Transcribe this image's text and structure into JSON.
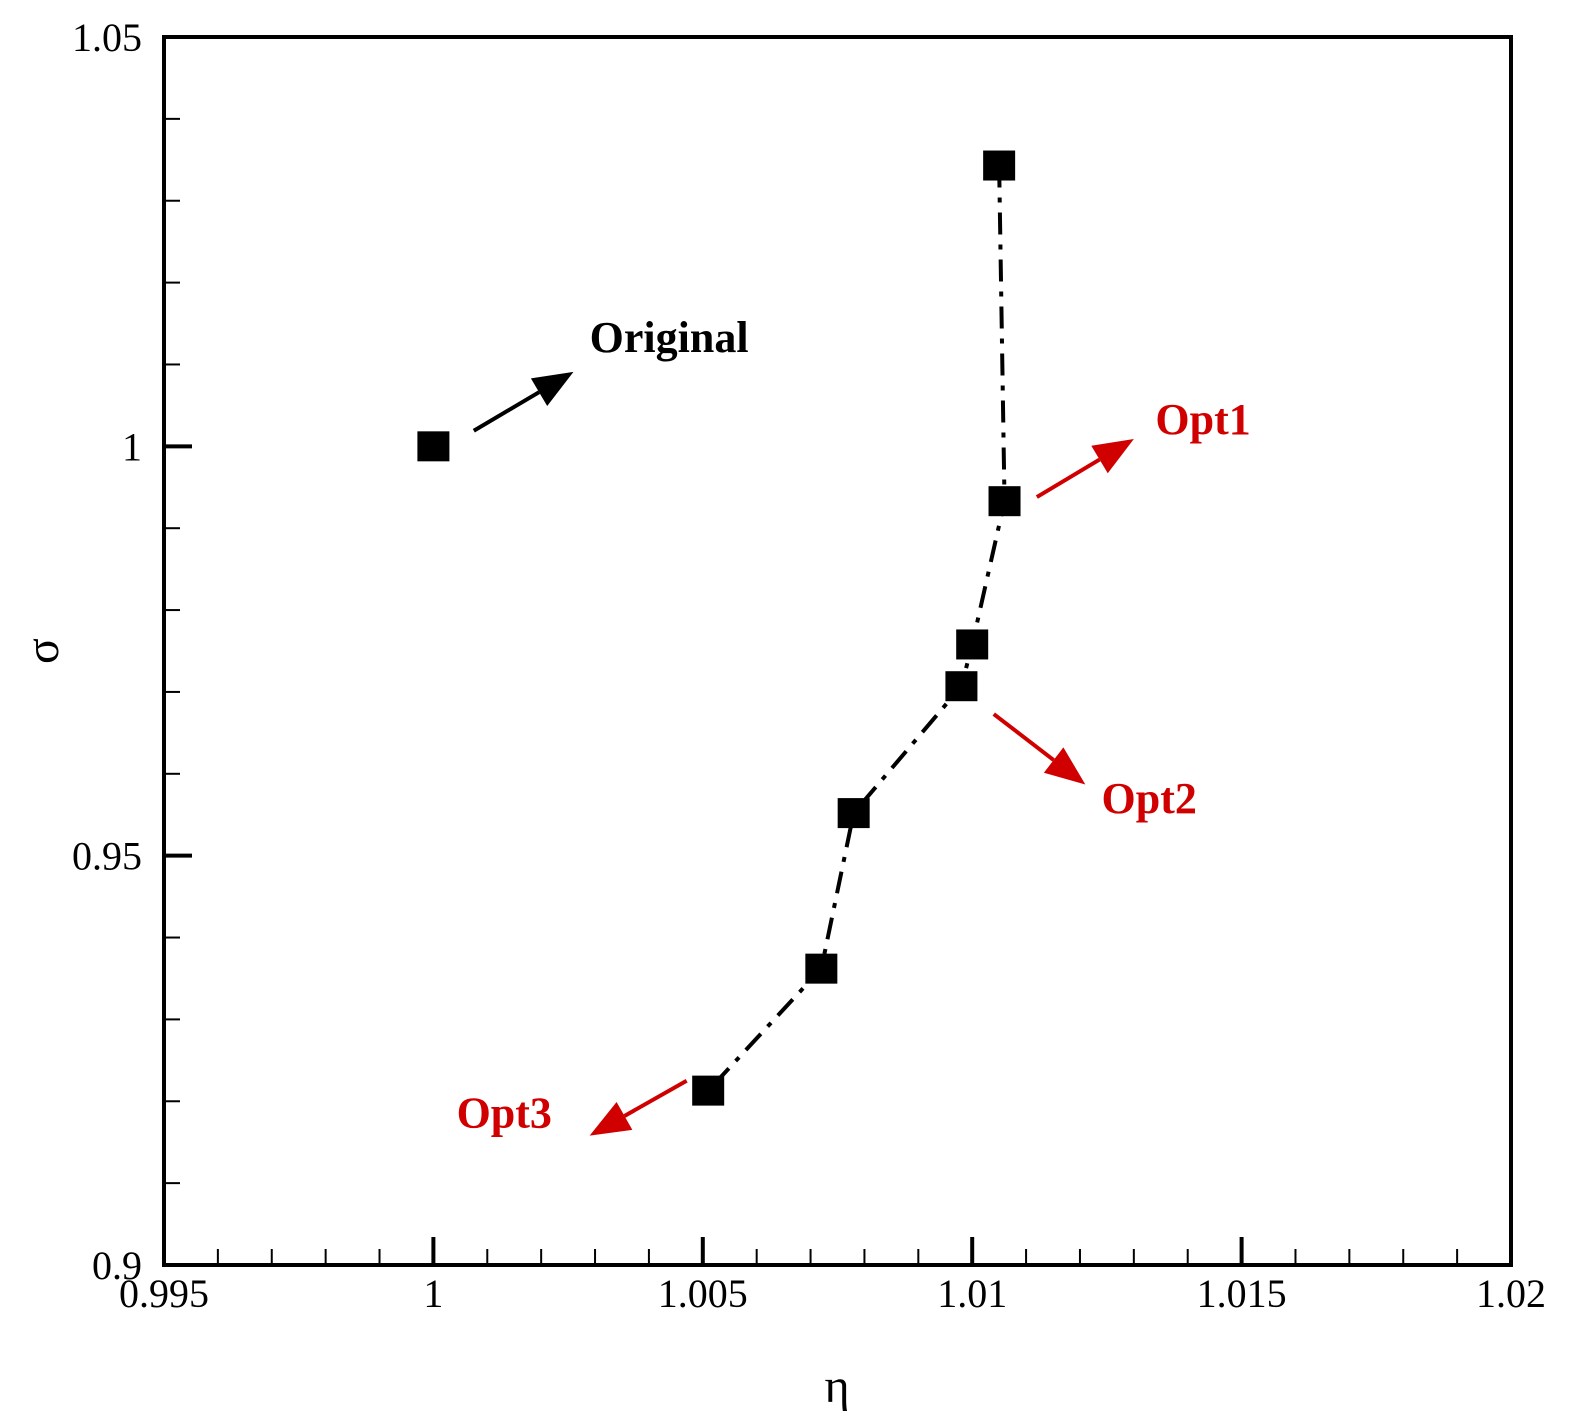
{
  "chart_data": {
    "type": "scatter",
    "xlabel": "η",
    "ylabel": "σ",
    "xlim": [
      0.995,
      1.02
    ],
    "ylim": [
      0.9,
      1.05
    ],
    "x_ticks": [
      0.995,
      1,
      1.005,
      1.01,
      1.015,
      1.02
    ],
    "x_tick_labels": [
      "0.995",
      "1",
      "1.005",
      "1.01",
      "1.015",
      "1.02"
    ],
    "y_ticks": [
      0.9,
      0.95,
      1,
      1.05
    ],
    "y_tick_labels": [
      "0.9",
      "0.95",
      "1",
      "1.05"
    ],
    "x_minor_step": 0.001,
    "y_minor_step": 0.01,
    "grid": false,
    "series": [
      {
        "marker": "square",
        "line": "dash-dot",
        "color": "#000000",
        "x": [
          1.0105,
          1.0106,
          1.01,
          1.0098,
          1.0078,
          1.0072,
          1.0051
        ],
        "y": [
          1.0343,
          0.9933,
          0.9758,
          0.9707,
          0.9552,
          0.9362,
          0.9213
        ]
      },
      {
        "marker": "square",
        "line": "none",
        "color": "#000000",
        "x": [
          1.0
        ],
        "y": [
          1.0
        ]
      }
    ],
    "annotations": [
      {
        "text": "Original",
        "color": "#000000",
        "x_tail": 1.00075,
        "y_tail": 1.0019,
        "x_head": 1.0026,
        "y_head": 1.0091,
        "x_text": 1.0029,
        "y_text": 1.0115,
        "anchor": "start"
      },
      {
        "text": "Opt1",
        "color": "#d10000",
        "x_tail": 1.0112,
        "y_tail": 0.9938,
        "x_head": 1.013,
        "y_head": 1.0009,
        "x_text": 1.0134,
        "y_text": 1.0015,
        "anchor": "start"
      },
      {
        "text": "Opt2",
        "color": "#d10000",
        "x_tail": 1.0104,
        "y_tail": 0.9673,
        "x_head": 1.0121,
        "y_head": 0.9587,
        "x_text": 1.0124,
        "y_text": 0.9552,
        "anchor": "start"
      },
      {
        "text": "Opt3",
        "color": "#d10000",
        "x_tail": 1.0047,
        "y_tail": 0.9225,
        "x_head": 1.0029,
        "y_head": 0.9158,
        "x_text": 1.0022,
        "y_text": 0.9168,
        "anchor": "end"
      }
    ]
  }
}
